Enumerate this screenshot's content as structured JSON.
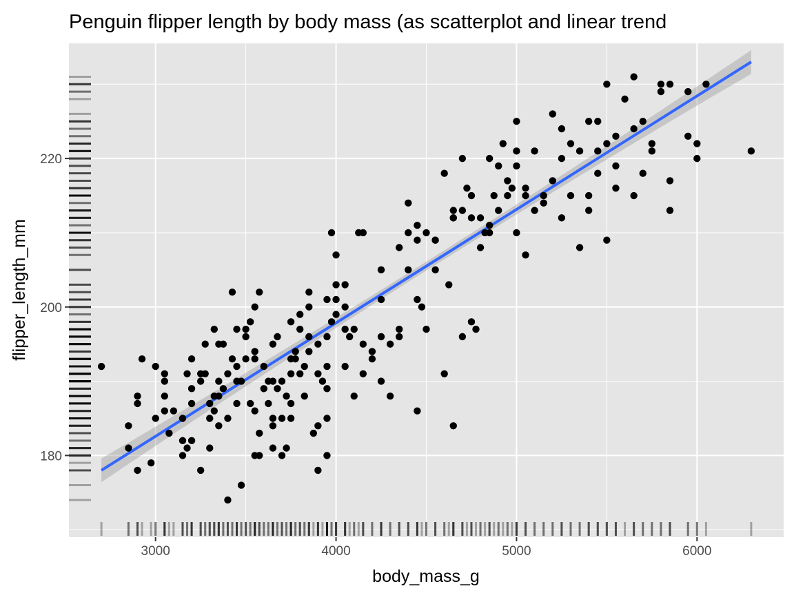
{
  "chart_data": {
    "type": "scatter",
    "title": "Penguin flipper length by body mass (as scatterplot and linear trend",
    "xlabel": "body_mass_g",
    "ylabel": "flipper_length_mm",
    "xlim": [
      2520,
      6480
    ],
    "ylim": [
      169,
      235.5
    ],
    "x_ticks": [
      3000,
      4000,
      5000,
      6000
    ],
    "y_ticks": [
      180,
      200,
      220
    ],
    "grid": true,
    "legend": "none",
    "colors": {
      "panel": "#e5e5e5",
      "grid": "#ffffff",
      "points": "#000000",
      "trend": "#3366ff",
      "ribbon": "#999999",
      "rug": "#000000"
    },
    "trend": {
      "type": "linear",
      "x": [
        2700,
        6300
      ],
      "y": [
        178.0,
        233.0
      ],
      "ci_halfwidth_ends": 1.6,
      "ci_halfwidth_mid": 0.6
    },
    "points": [
      [
        2700,
        192
      ],
      [
        2850,
        184
      ],
      [
        2850,
        181
      ],
      [
        2900,
        178
      ],
      [
        2900,
        188
      ],
      [
        2900,
        187
      ],
      [
        2925,
        193
      ],
      [
        3000,
        192
      ],
      [
        3000,
        185
      ],
      [
        2975,
        179
      ],
      [
        3050,
        191
      ],
      [
        3050,
        190
      ],
      [
        3050,
        188
      ],
      [
        3050,
        186
      ],
      [
        3075,
        183
      ],
      [
        3100,
        186
      ],
      [
        3150,
        185
      ],
      [
        3150,
        182
      ],
      [
        3175,
        181
      ],
      [
        3200,
        182
      ],
      [
        3175,
        191
      ],
      [
        3200,
        193
      ],
      [
        3200,
        187
      ],
      [
        3200,
        189
      ],
      [
        3250,
        191
      ],
      [
        3250,
        178
      ],
      [
        3275,
        195
      ],
      [
        3275,
        191
      ],
      [
        3300,
        187
      ],
      [
        3300,
        185
      ],
      [
        3300,
        181
      ],
      [
        3325,
        188
      ],
      [
        3325,
        197
      ],
      [
        3325,
        186
      ],
      [
        3350,
        190
      ],
      [
        3350,
        184
      ],
      [
        3350,
        195
      ],
      [
        3375,
        195
      ],
      [
        3375,
        189
      ],
      [
        3400,
        191
      ],
      [
        3400,
        185
      ],
      [
        3400,
        174
      ],
      [
        3425,
        202
      ],
      [
        3425,
        193
      ],
      [
        3450,
        197
      ],
      [
        3450,
        187
      ],
      [
        3475,
        176
      ],
      [
        3475,
        190
      ],
      [
        3500,
        193
      ],
      [
        3500,
        197
      ],
      [
        3500,
        196
      ],
      [
        3525,
        198
      ],
      [
        3525,
        187
      ],
      [
        3550,
        194
      ],
      [
        3550,
        186
      ],
      [
        3550,
        193
      ],
      [
        3575,
        202
      ],
      [
        3575,
        180
      ],
      [
        3575,
        183
      ],
      [
        3600,
        192
      ],
      [
        3600,
        189
      ],
      [
        3625,
        190
      ],
      [
        3625,
        187
      ],
      [
        3650,
        181
      ],
      [
        3650,
        190
      ],
      [
        3650,
        184
      ],
      [
        3675,
        196
      ],
      [
        3675,
        189
      ],
      [
        3700,
        185
      ],
      [
        3700,
        190
      ],
      [
        3700,
        180
      ],
      [
        3725,
        188
      ],
      [
        3725,
        181
      ],
      [
        3750,
        198
      ],
      [
        3750,
        187
      ],
      [
        3750,
        185
      ],
      [
        3775,
        193
      ],
      [
        3775,
        194
      ],
      [
        3800,
        199
      ],
      [
        3800,
        197
      ],
      [
        3800,
        191
      ],
      [
        3825,
        192
      ],
      [
        3825,
        188
      ],
      [
        3850,
        202
      ],
      [
        3850,
        194
      ],
      [
        3875,
        183
      ],
      [
        3900,
        191
      ],
      [
        3900,
        184
      ],
      [
        3900,
        178
      ],
      [
        3900,
        195
      ],
      [
        3925,
        190
      ],
      [
        3950,
        196
      ],
      [
        3950,
        185
      ],
      [
        3950,
        180
      ],
      [
        3950,
        189
      ],
      [
        3975,
        198
      ],
      [
        4000,
        201
      ],
      [
        4000,
        203
      ],
      [
        4000,
        207
      ],
      [
        4000,
        199
      ],
      [
        3975,
        210
      ],
      [
        4050,
        200
      ],
      [
        4050,
        192
      ],
      [
        4075,
        196
      ],
      [
        4100,
        197
      ],
      [
        4100,
        188
      ],
      [
        4125,
        210
      ],
      [
        4150,
        191
      ],
      [
        4150,
        195
      ],
      [
        4200,
        193
      ],
      [
        4200,
        194
      ],
      [
        4250,
        196
      ],
      [
        4250,
        190
      ],
      [
        4300,
        195
      ],
      [
        4300,
        188
      ],
      [
        4350,
        197
      ],
      [
        4400,
        205
      ],
      [
        4400,
        214
      ],
      [
        4400,
        210
      ],
      [
        4450,
        209
      ],
      [
        4450,
        201
      ],
      [
        4450,
        186
      ],
      [
        4475,
        200
      ],
      [
        4500,
        210
      ],
      [
        4500,
        197
      ],
      [
        4550,
        205
      ],
      [
        4600,
        218
      ],
      [
        4600,
        191
      ],
      [
        4625,
        203
      ],
      [
        4650,
        184
      ],
      [
        4650,
        213
      ],
      [
        4700,
        220
      ],
      [
        4700,
        213
      ],
      [
        4700,
        196
      ],
      [
        4725,
        216
      ],
      [
        4750,
        212
      ],
      [
        4750,
        198
      ],
      [
        4775,
        197
      ],
      [
        4800,
        208
      ],
      [
        4800,
        212
      ],
      [
        4825,
        210
      ],
      [
        4850,
        211
      ],
      [
        4875,
        215
      ],
      [
        4900,
        219
      ],
      [
        4900,
        213
      ],
      [
        4925,
        222
      ],
      [
        4950,
        217
      ],
      [
        4975,
        216
      ],
      [
        5000,
        225
      ],
      [
        5000,
        221
      ],
      [
        5000,
        219
      ],
      [
        5000,
        210
      ],
      [
        5050,
        207
      ],
      [
        5100,
        213
      ],
      [
        5100,
        221
      ],
      [
        5150,
        215
      ],
      [
        5200,
        226
      ],
      [
        5200,
        217
      ],
      [
        5250,
        220
      ],
      [
        5250,
        212
      ],
      [
        5300,
        222
      ],
      [
        5300,
        215
      ],
      [
        5350,
        208
      ],
      [
        5400,
        225
      ],
      [
        5400,
        213
      ],
      [
        5400,
        215
      ],
      [
        5450,
        221
      ],
      [
        5500,
        230
      ],
      [
        5500,
        222
      ],
      [
        5500,
        209
      ],
      [
        5550,
        223
      ],
      [
        5550,
        216
      ],
      [
        5600,
        228
      ],
      [
        5650,
        231
      ],
      [
        5650,
        224
      ],
      [
        5650,
        215
      ],
      [
        5700,
        225
      ],
      [
        5700,
        218
      ],
      [
        5750,
        222
      ],
      [
        5800,
        230
      ],
      [
        5800,
        229
      ],
      [
        5850,
        230
      ],
      [
        5850,
        217
      ],
      [
        5850,
        213
      ],
      [
        5950,
        229
      ],
      [
        5950,
        223
      ],
      [
        6000,
        222
      ],
      [
        6000,
        220
      ],
      [
        6050,
        230
      ],
      [
        6300,
        221
      ],
      [
        3350,
        188
      ],
      [
        3450,
        190
      ],
      [
        3550,
        180
      ],
      [
        3650,
        185
      ],
      [
        3750,
        191
      ],
      [
        3850,
        196
      ],
      [
        3950,
        201
      ],
      [
        4050,
        203
      ],
      [
        4150,
        210
      ],
      [
        4250,
        201
      ],
      [
        4350,
        208
      ],
      [
        4550,
        209
      ],
      [
        4650,
        212
      ],
      [
        4750,
        215
      ],
      [
        4850,
        210
      ],
      [
        4950,
        215
      ],
      [
        5050,
        215
      ],
      [
        5150,
        214
      ],
      [
        5350,
        221
      ],
      [
        5450,
        218
      ],
      [
        3150,
        180
      ],
      [
        3250,
        190
      ],
      [
        3450,
        192
      ],
      [
        3550,
        200
      ],
      [
        3650,
        195
      ],
      [
        3750,
        193
      ],
      [
        3850,
        200
      ],
      [
        3950,
        192
      ],
      [
        4050,
        197
      ],
      [
        4250,
        205
      ],
      [
        4350,
        196
      ],
      [
        4450,
        211
      ],
      [
        4550,
        209
      ],
      [
        4650,
        212
      ],
      [
        4850,
        220
      ],
      [
        5050,
        216
      ],
      [
        5250,
        224
      ],
      [
        5450,
        225
      ],
      [
        5550,
        219
      ],
      [
        5750,
        221
      ]
    ]
  }
}
